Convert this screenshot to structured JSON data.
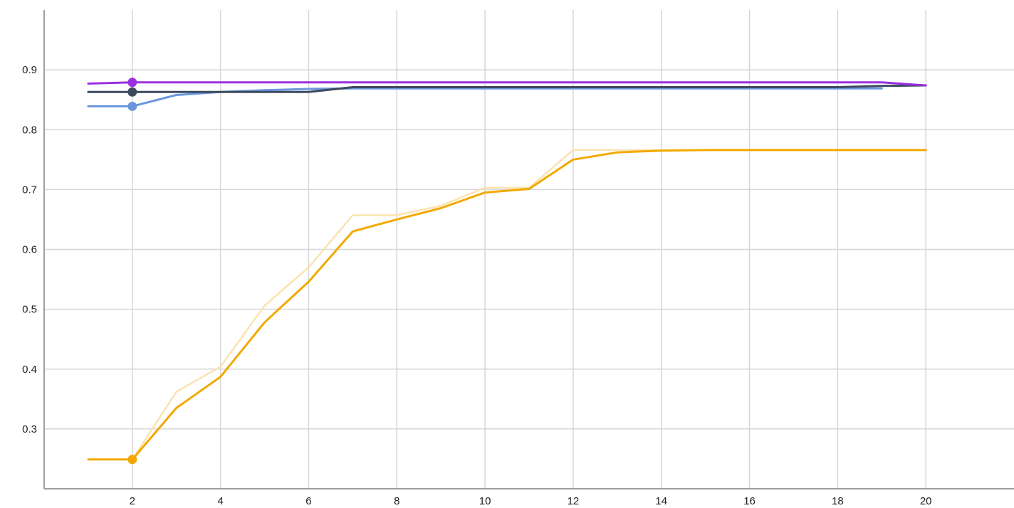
{
  "chart_data": {
    "type": "line",
    "title": "",
    "xlabel": "",
    "ylabel": "",
    "xlim": [
      0,
      22
    ],
    "ylim": [
      0.2,
      1.0
    ],
    "x_ticks": [
      2,
      4,
      6,
      8,
      10,
      12,
      14,
      16,
      18,
      20
    ],
    "y_ticks": [
      0.3,
      0.4,
      0.5,
      0.6,
      0.7,
      0.8,
      0.9
    ],
    "x_tick_labels": [
      "2",
      "4",
      "6",
      "8",
      "10",
      "12",
      "14",
      "16",
      "18",
      "20"
    ],
    "y_tick_labels": [
      "0.3",
      "0.4",
      "0.5",
      "0.6",
      "0.7",
      "0.8",
      "0.9"
    ],
    "grid": true,
    "legend": "none",
    "highlight_x": 2,
    "series": [
      {
        "color": "#f2a900",
        "smoothed": true,
        "raw_color": "#fbe3b0",
        "raw_points": [
          [
            1,
            0.249
          ],
          [
            2,
            0.249
          ],
          [
            3,
            0.362
          ],
          [
            4,
            0.404
          ],
          [
            5,
            0.506
          ],
          [
            6,
            0.57
          ],
          [
            7,
            0.657
          ],
          [
            8,
            0.657
          ],
          [
            9,
            0.673
          ],
          [
            10,
            0.703
          ],
          [
            11,
            0.703
          ],
          [
            12,
            0.766
          ],
          [
            13,
            0.766
          ],
          [
            14,
            0.766
          ],
          [
            15,
            0.766
          ],
          [
            16,
            0.766
          ],
          [
            17,
            0.766
          ],
          [
            18,
            0.766
          ],
          [
            19,
            0.766
          ],
          [
            20,
            0.766
          ]
        ],
        "points": [
          [
            1,
            0.249
          ],
          [
            2,
            0.249
          ],
          [
            3,
            0.335
          ],
          [
            4,
            0.387
          ],
          [
            5,
            0.478
          ],
          [
            6,
            0.546
          ],
          [
            7,
            0.63
          ],
          [
            8,
            0.65
          ],
          [
            9,
            0.669
          ],
          [
            10,
            0.695
          ],
          [
            11,
            0.701
          ],
          [
            12,
            0.75
          ],
          [
            13,
            0.762
          ],
          [
            14,
            0.765
          ],
          [
            15,
            0.766
          ],
          [
            16,
            0.766
          ],
          [
            17,
            0.766
          ],
          [
            18,
            0.766
          ],
          [
            19,
            0.766
          ],
          [
            20,
            0.766
          ]
        ]
      },
      {
        "color": "#6a97dc",
        "smoothed": false,
        "points": [
          [
            1,
            0.839
          ],
          [
            2,
            0.839
          ],
          [
            3,
            0.858
          ],
          [
            4,
            0.863
          ],
          [
            5,
            0.866
          ],
          [
            6,
            0.868
          ],
          [
            7,
            0.869
          ],
          [
            8,
            0.869
          ],
          [
            9,
            0.869
          ],
          [
            10,
            0.869
          ],
          [
            11,
            0.869
          ],
          [
            12,
            0.869
          ],
          [
            13,
            0.869
          ],
          [
            14,
            0.869
          ],
          [
            15,
            0.869
          ],
          [
            16,
            0.869
          ],
          [
            17,
            0.869
          ],
          [
            18,
            0.869
          ],
          [
            19,
            0.869
          ]
        ]
      },
      {
        "color": "#3d4a5e",
        "smoothed": false,
        "points": [
          [
            1,
            0.863
          ],
          [
            2,
            0.863
          ],
          [
            3,
            0.863
          ],
          [
            4,
            0.863
          ],
          [
            5,
            0.863
          ],
          [
            6,
            0.863
          ],
          [
            7,
            0.871
          ],
          [
            8,
            0.871
          ],
          [
            9,
            0.871
          ],
          [
            10,
            0.871
          ],
          [
            11,
            0.871
          ],
          [
            12,
            0.871
          ],
          [
            13,
            0.871
          ],
          [
            14,
            0.871
          ],
          [
            15,
            0.871
          ],
          [
            16,
            0.871
          ],
          [
            17,
            0.871
          ],
          [
            18,
            0.871
          ],
          [
            19,
            0.873
          ],
          [
            20,
            0.874
          ]
        ]
      },
      {
        "color": "#9b30e0",
        "smoothed": false,
        "points": [
          [
            1,
            0.877
          ],
          [
            2,
            0.879
          ],
          [
            3,
            0.879
          ],
          [
            4,
            0.879
          ],
          [
            5,
            0.879
          ],
          [
            6,
            0.879
          ],
          [
            7,
            0.879
          ],
          [
            8,
            0.879
          ],
          [
            9,
            0.879
          ],
          [
            10,
            0.879
          ],
          [
            11,
            0.879
          ],
          [
            12,
            0.879
          ],
          [
            13,
            0.879
          ],
          [
            14,
            0.879
          ],
          [
            15,
            0.879
          ],
          [
            16,
            0.879
          ],
          [
            17,
            0.879
          ],
          [
            18,
            0.879
          ],
          [
            19,
            0.879
          ],
          [
            20,
            0.874
          ]
        ]
      }
    ]
  }
}
